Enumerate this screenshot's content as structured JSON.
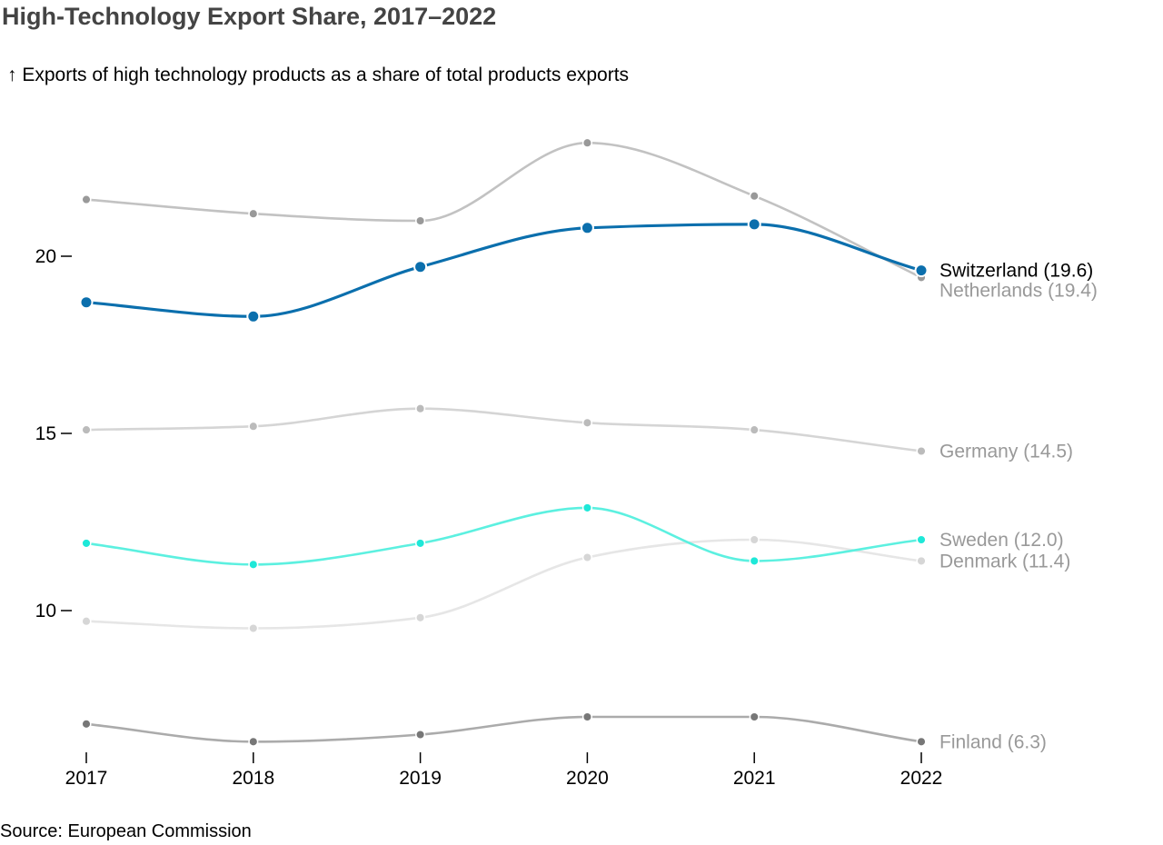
{
  "title": "High-Technology Export Share, 2017–2022",
  "subtitle_arrow": "↑",
  "subtitle": "Exports of high technology products as a share of total products exports",
  "source": "Source: European Commission",
  "chart_data": {
    "type": "line",
    "x": [
      2017,
      2018,
      2019,
      2020,
      2021,
      2022
    ],
    "x_tick_labels": [
      "2017",
      "2018",
      "2019",
      "2020",
      "2021",
      "2022"
    ],
    "y_ticks": [
      10,
      15,
      20
    ],
    "y_tick_labels": [
      "10",
      "15",
      "20"
    ],
    "ylim": [
      6.0,
      25.0
    ],
    "grid": false,
    "curve": "smooth",
    "series": [
      {
        "name": "Netherlands",
        "end_label": "Netherlands (19.4)",
        "color": "#c2c2c2",
        "point_color": "#999999",
        "label_color": "#999999",
        "emphasis": false,
        "values": [
          21.6,
          21.2,
          21.0,
          23.2,
          21.7,
          19.4
        ]
      },
      {
        "name": "Germany",
        "end_label": "Germany (14.5)",
        "color": "#d5d5d5",
        "point_color": "#bbbbbb",
        "label_color": "#999999",
        "emphasis": false,
        "values": [
          15.1,
          15.2,
          15.7,
          15.3,
          15.1,
          14.5
        ]
      },
      {
        "name": "Denmark",
        "end_label": "Denmark (11.4)",
        "color": "#e6e6e6",
        "point_color": "#d6d6d6",
        "label_color": "#999999",
        "emphasis": false,
        "values": [
          9.7,
          9.5,
          9.8,
          11.5,
          12.0,
          11.4
        ]
      },
      {
        "name": "Finland",
        "end_label": "Finland (6.3)",
        "color": "#ababab",
        "point_color": "#777777",
        "label_color": "#999999",
        "emphasis": false,
        "values": [
          6.8,
          6.3,
          6.5,
          7.0,
          7.0,
          6.3
        ]
      },
      {
        "name": "Sweden",
        "end_label": "Sweden (12.0)",
        "color": "#5cf0e0",
        "point_color": "#1ee8d8",
        "label_color": "#999999",
        "emphasis": false,
        "values": [
          11.9,
          11.3,
          11.9,
          12.9,
          11.4,
          12.0
        ]
      },
      {
        "name": "Switzerland",
        "end_label": "Switzerland (19.6)",
        "color": "#0b6fad",
        "point_color": "#0b6fad",
        "label_color": "#000000",
        "emphasis": true,
        "values": [
          18.7,
          18.3,
          19.7,
          20.8,
          20.9,
          19.6
        ]
      }
    ]
  }
}
